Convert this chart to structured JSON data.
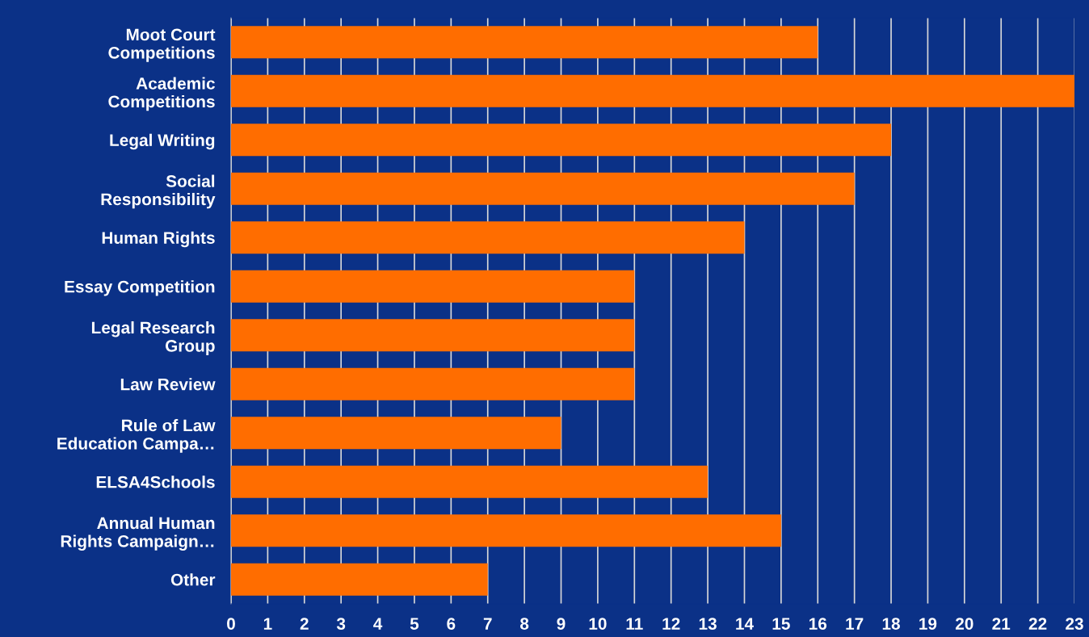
{
  "chart_data": {
    "type": "bar",
    "orientation": "horizontal",
    "categories": [
      "Moot Court\nCompetitions",
      "Academic\nCompetitions",
      "Legal Writing",
      "Social\nResponsibility",
      "Human Rights",
      "Essay Competition",
      "Legal Research\nGroup",
      "Law Review",
      "Rule of Law\nEducation Campa…",
      "ELSA4Schools",
      "Annual Human\nRights Campaign…",
      "Other"
    ],
    "values": [
      16,
      23,
      18,
      17,
      14,
      11,
      11,
      11,
      9,
      13,
      15,
      7
    ],
    "color": "#ff6d00",
    "xlim": [
      0,
      23
    ],
    "xticks": [
      0,
      1,
      2,
      3,
      4,
      5,
      6,
      7,
      8,
      9,
      10,
      11,
      12,
      13,
      14,
      15,
      16,
      17,
      18,
      19,
      20,
      21,
      22,
      23
    ],
    "grid": "x"
  }
}
